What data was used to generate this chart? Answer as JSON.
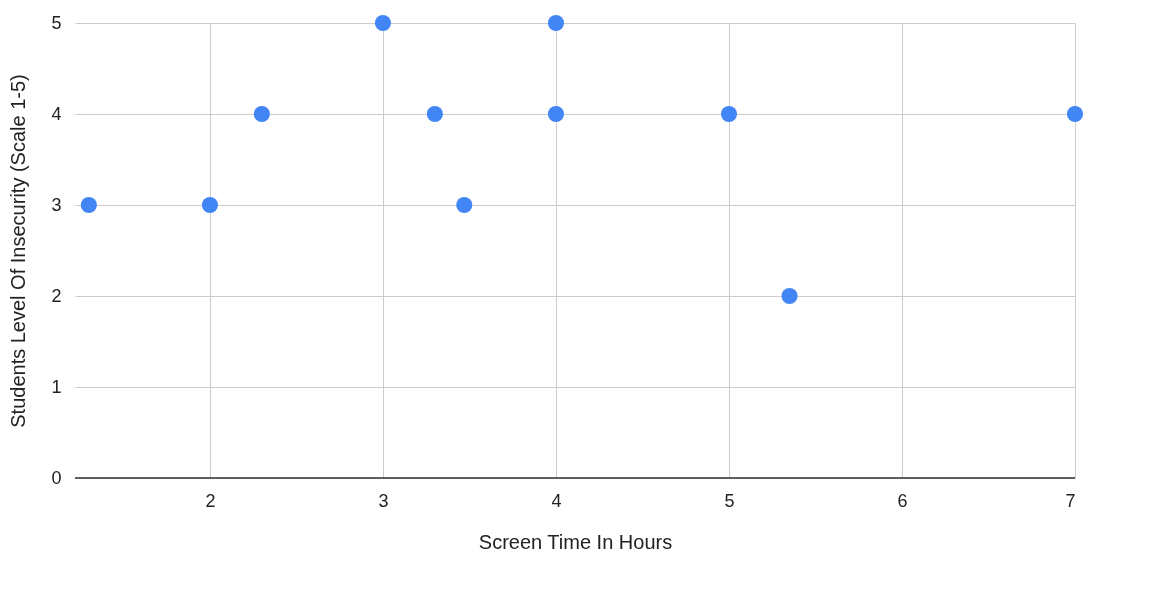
{
  "chart_data": {
    "type": "scatter",
    "xlabel": "Screen Time In  Hours",
    "ylabel": "Students Level Of Insecurity (Scale 1-5)",
    "x": [
      1.3,
      2,
      2.3,
      3,
      3.3,
      3.47,
      4,
      4,
      5,
      5.35,
      7
    ],
    "series": [
      {
        "color": "#4285f4",
        "values": [
          3,
          3,
          4,
          5,
          4,
          3,
          5,
          4,
          4,
          2,
          4
        ]
      }
    ],
    "xlim": [
      1.22,
      7
    ],
    "xticks": [
      2,
      3,
      4,
      5,
      6,
      7
    ],
    "ylim": [
      0,
      5
    ],
    "yticks": [
      0,
      1,
      2,
      3,
      4,
      5
    ],
    "grid": true,
    "marker": "circle"
  }
}
